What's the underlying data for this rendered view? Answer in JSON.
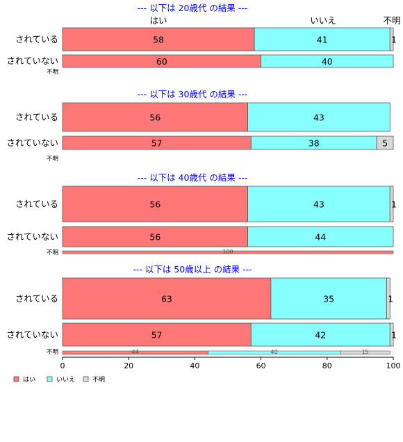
{
  "chart_data": {
    "type": "bar",
    "orientation": "horizontal",
    "stacked": true,
    "xlim": [
      0,
      100
    ],
    "xticks": [
      0,
      20,
      40,
      60,
      80,
      100
    ],
    "series_names": [
      "はい",
      "いいえ",
      "不明"
    ],
    "series_colors": [
      "#ff7777",
      "#88ffff",
      "#d9d9d9"
    ],
    "panels": [
      {
        "title": "--- 以下は 20歳代 の結果 ---",
        "top_labels": [
          "はい",
          "いいえ",
          "不明"
        ],
        "rows": [
          {
            "label": "されている",
            "values": [
              58,
              41,
              1
            ]
          },
          {
            "label": "されていない",
            "values": [
              60,
              40,
              0
            ]
          },
          {
            "label": "不明",
            "values": []
          }
        ]
      },
      {
        "title": "--- 以下は 30歳代 の結果 ---",
        "rows": [
          {
            "label": "されている",
            "values": [
              56,
              43,
              0
            ]
          },
          {
            "label": "されていない",
            "values": [
              57,
              38,
              5
            ]
          },
          {
            "label": "不明",
            "values": []
          }
        ]
      },
      {
        "title": "--- 以下は 40歳代 の結果 ---",
        "rows": [
          {
            "label": "されている",
            "values": [
              56,
              43,
              1
            ]
          },
          {
            "label": "されていない",
            "values": [
              56,
              44,
              0
            ]
          },
          {
            "label": "不明",
            "values": [
              100,
              0,
              0
            ]
          }
        ]
      },
      {
        "title": "--- 以下は 50歳以上 の結果 ---",
        "rows": [
          {
            "label": "されている",
            "values": [
              63,
              35,
              1
            ]
          },
          {
            "label": "されていない",
            "values": [
              57,
              42,
              1
            ]
          },
          {
            "label": "不明",
            "values": [
              44,
              40,
              15
            ]
          }
        ]
      }
    ],
    "legend": [
      "はい",
      "いいえ",
      "不明"
    ],
    "legend_position": "bottom-left"
  }
}
